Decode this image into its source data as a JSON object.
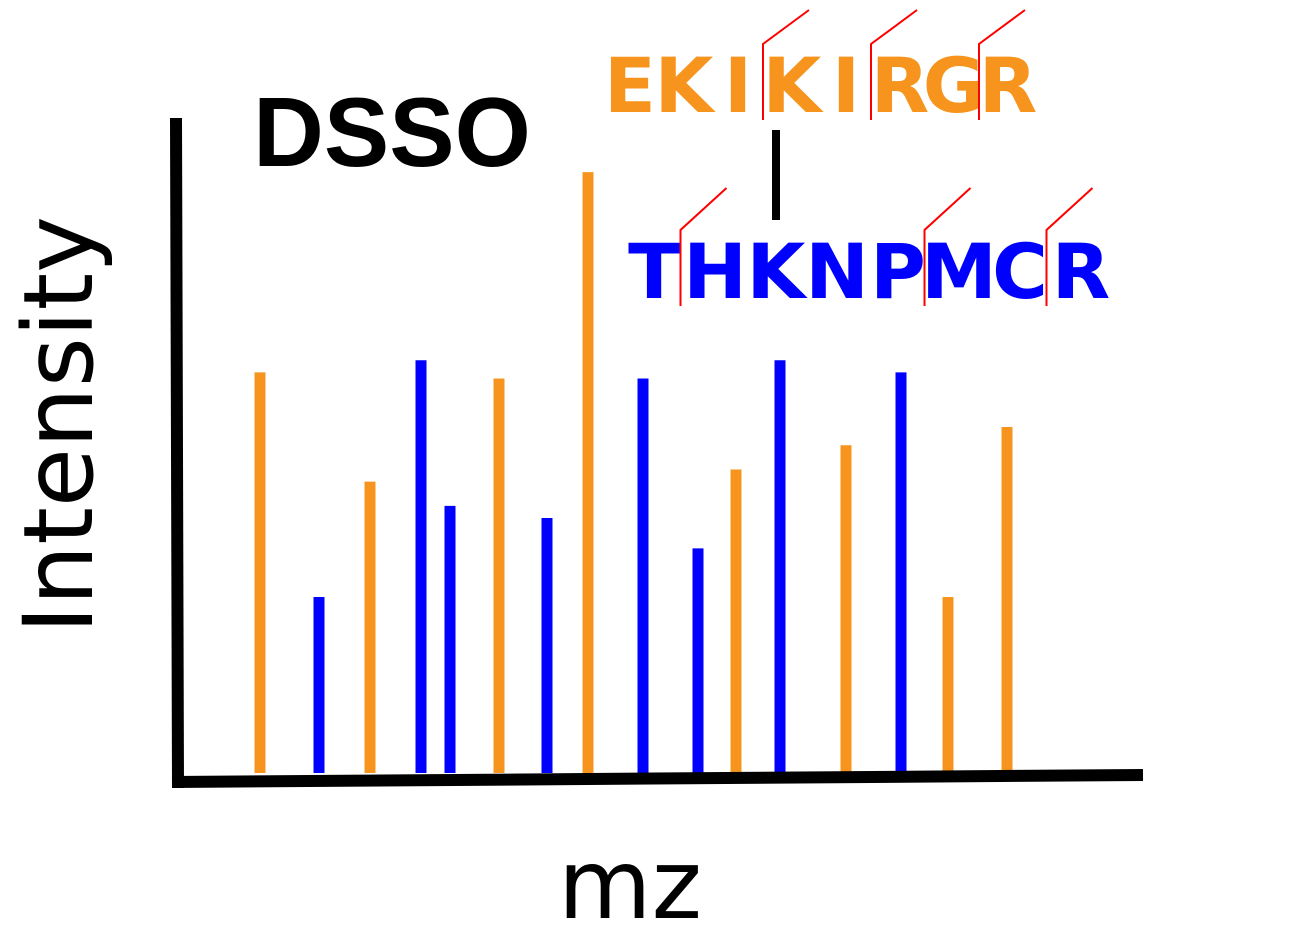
{
  "colors": {
    "alpha": "#f7941d",
    "beta": "#0000ff",
    "fragment_mark": "#ff0000",
    "axis": "#000000"
  },
  "chart_data": {
    "type": "bar",
    "title": "DSSO",
    "xlabel": "mz",
    "ylabel": "Intensity",
    "ylim": [
      0,
      100
    ],
    "grid": false,
    "xtick_labels_shown": false,
    "ytick_labels_shown": false,
    "peaks": [
      {
        "series": "alpha",
        "x": 1,
        "intensity": 66
      },
      {
        "series": "beta",
        "x": 2,
        "intensity": 29
      },
      {
        "series": "alpha",
        "x": 3,
        "intensity": 48
      },
      {
        "series": "beta",
        "x": 4,
        "intensity": 68
      },
      {
        "series": "beta",
        "x": 5,
        "intensity": 44
      },
      {
        "series": "alpha",
        "x": 6,
        "intensity": 65
      },
      {
        "series": "beta",
        "x": 7,
        "intensity": 42
      },
      {
        "series": "alpha",
        "x": 8,
        "intensity": 99
      },
      {
        "series": "beta",
        "x": 9,
        "intensity": 65
      },
      {
        "series": "beta",
        "x": 10,
        "intensity": 37
      },
      {
        "series": "alpha",
        "x": 11,
        "intensity": 50
      },
      {
        "series": "beta",
        "x": 12,
        "intensity": 68
      },
      {
        "series": "alpha",
        "x": 13,
        "intensity": 54
      },
      {
        "series": "beta",
        "x": 14,
        "intensity": 66
      },
      {
        "series": "alpha",
        "x": 15,
        "intensity": 29
      },
      {
        "series": "alpha",
        "x": 16,
        "intensity": 57
      }
    ],
    "peptides": [
      {
        "series": "alpha",
        "residues": [
          "E",
          "K",
          "I",
          "K",
          "I",
          "R",
          "G",
          "R"
        ],
        "fragment_break_before": [
          3,
          5,
          7
        ],
        "crosslinked_residue": 3
      },
      {
        "series": "beta",
        "residues": [
          "T",
          "H",
          "K",
          "N",
          "P",
          "M",
          "C",
          "R"
        ],
        "fragment_break_before": [
          1,
          5,
          7
        ],
        "crosslinked_residue": 2
      }
    ]
  }
}
